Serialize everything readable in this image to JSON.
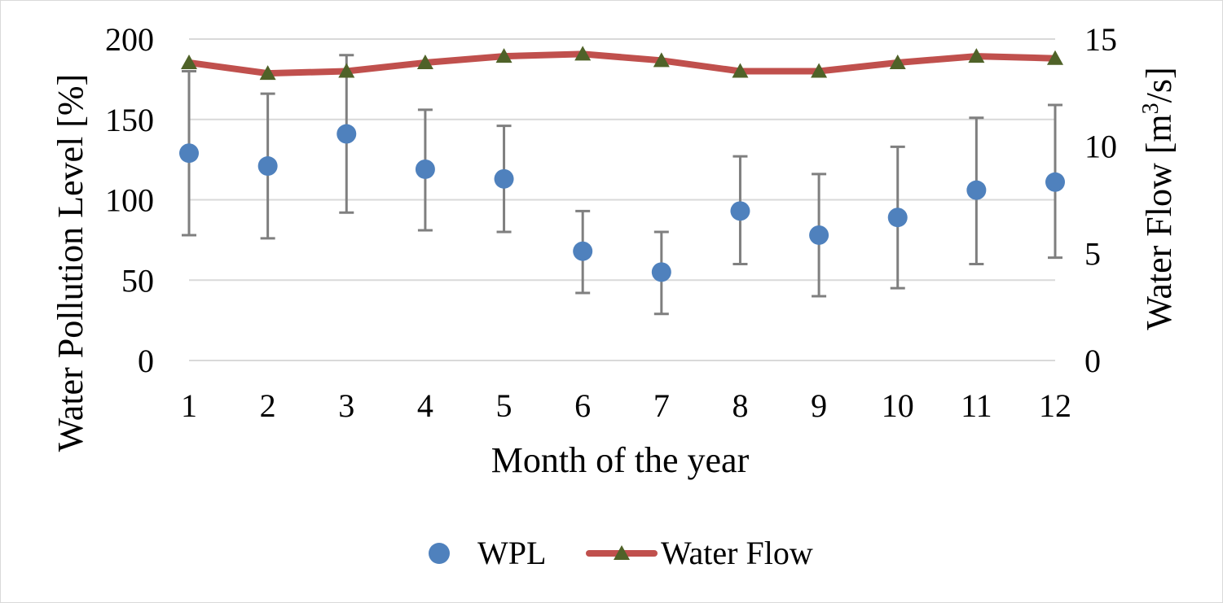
{
  "chart_data": {
    "type": "line",
    "x_title": "Month of the year",
    "y_left_title": "Water Pollution Level [%]",
    "y_right_title": {
      "prefix": "Water Flow [m",
      "sup": "3",
      "suffix": "/s]"
    },
    "x": [
      1,
      2,
      3,
      4,
      5,
      6,
      7,
      8,
      9,
      10,
      11,
      12
    ],
    "x_ticks": [
      "1",
      "2",
      "3",
      "4",
      "5",
      "6",
      "7",
      "8",
      "9",
      "10",
      "11",
      "12"
    ],
    "y_left_ticks": [
      "0",
      "50",
      "100",
      "150",
      "200"
    ],
    "y_right_ticks": [
      "0",
      "5",
      "10",
      "15"
    ],
    "y_left_range": [
      0,
      200
    ],
    "y_right_range": [
      0,
      15
    ],
    "grid": true,
    "legend_position": "bottom",
    "series": [
      {
        "name": "WPL",
        "kind": "scatter",
        "axis": "left",
        "color": "#4f81bd",
        "values": [
          129,
          121,
          141,
          119,
          113,
          68,
          55,
          93,
          78,
          89,
          106,
          111
        ],
        "error_low": [
          78,
          76,
          92,
          81,
          80,
          42,
          29,
          60,
          40,
          45,
          60,
          64
        ],
        "error_high": [
          180,
          166,
          190,
          156,
          146,
          93,
          80,
          127,
          116,
          133,
          151,
          159
        ]
      },
      {
        "name": "Water Flow",
        "kind": "line",
        "axis": "right",
        "color": "#c0504d",
        "marker_color": "#4f6228",
        "values": [
          13.9,
          13.4,
          13.5,
          13.9,
          14.2,
          14.3,
          14.0,
          13.5,
          13.5,
          13.9,
          14.2,
          14.1
        ]
      }
    ]
  }
}
